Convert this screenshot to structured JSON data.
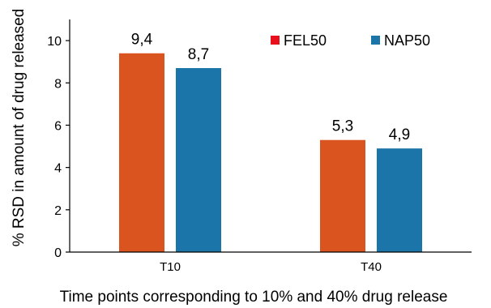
{
  "chart_data": {
    "type": "bar",
    "categories": [
      "T10",
      "T40"
    ],
    "series": [
      {
        "name": "FEL50",
        "values": [
          9.4,
          5.3
        ],
        "labels": [
          "9,4",
          "5,3"
        ],
        "color": "#d9541e"
      },
      {
        "name": "NAP50",
        "values": [
          8.7,
          4.9
        ],
        "labels": [
          "8,7",
          "4,9"
        ],
        "color": "#1b75a8"
      }
    ],
    "legend_colors": [
      "#e8101c",
      "#1b75a8"
    ],
    "xlabel": "Time points corresponding to 10% and 40% drug release",
    "ylabel": "% RSD in amount of drug released",
    "ylim": [
      0,
      11
    ],
    "yticks": [
      0,
      2,
      4,
      6,
      8,
      10
    ],
    "legend_position": "top-right",
    "grid": false
  }
}
